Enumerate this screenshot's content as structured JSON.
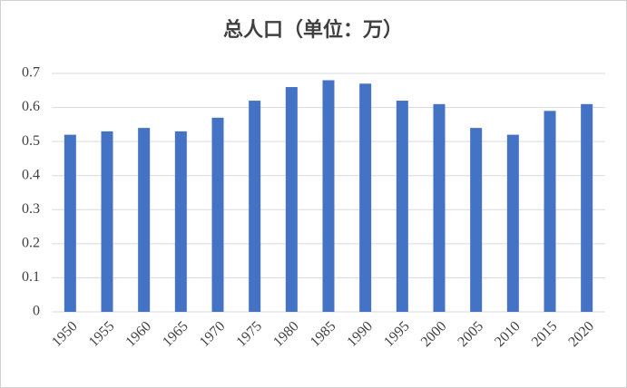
{
  "chart_data": {
    "type": "bar",
    "title": "总人口（单位：万）",
    "categories": [
      "1950",
      "1955",
      "1960",
      "1965",
      "1970",
      "1975",
      "1980",
      "1985",
      "1990",
      "1995",
      "2000",
      "2005",
      "2010",
      "2015",
      "2020"
    ],
    "values": [
      0.52,
      0.53,
      0.54,
      0.53,
      0.57,
      0.62,
      0.66,
      0.68,
      0.67,
      0.62,
      0.61,
      0.54,
      0.52,
      0.59,
      0.61
    ],
    "color": "#4472c4",
    "ylim": [
      0,
      0.7
    ],
    "yticks": [
      0,
      0.1,
      0.2,
      0.3,
      0.4,
      0.5,
      0.6,
      0.7
    ],
    "grid": true
  }
}
